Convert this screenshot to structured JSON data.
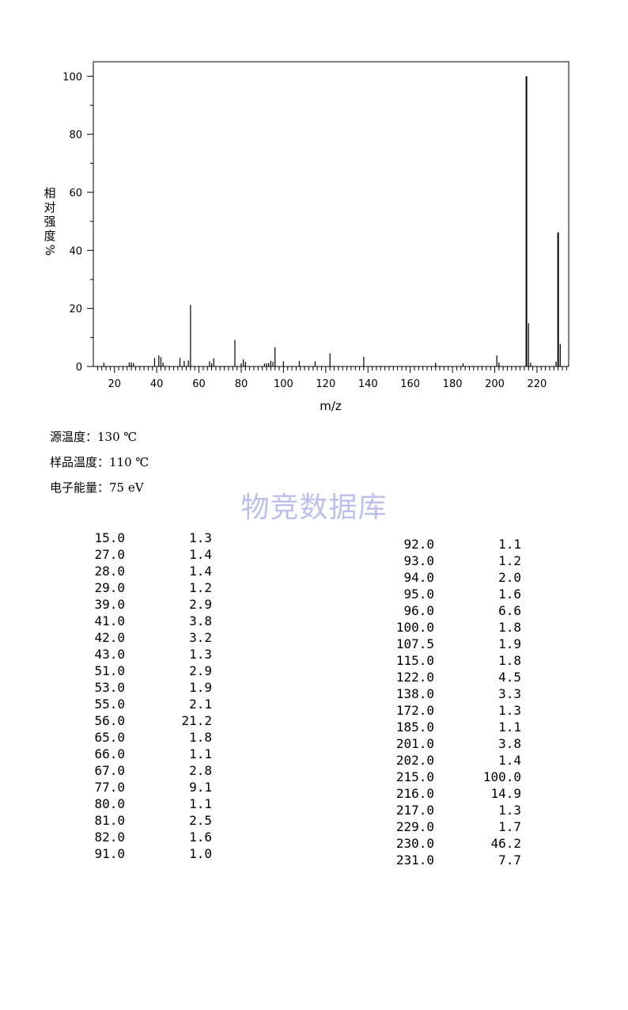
{
  "chart_data": {
    "type": "bar",
    "xlabel": "m/z",
    "ylabel": "相对强度%",
    "xlim": [
      10,
      235
    ],
    "ylim": [
      0,
      105
    ],
    "x_ticks": [
      20,
      40,
      60,
      80,
      100,
      120,
      140,
      160,
      180,
      200,
      220
    ],
    "y_ticks": [
      0,
      20,
      40,
      60,
      80,
      100
    ],
    "grid": false,
    "legend": "none",
    "bar_color": "#000000",
    "peaks": [
      {
        "mz": 15.0,
        "intensity": 1.3
      },
      {
        "mz": 27.0,
        "intensity": 1.4
      },
      {
        "mz": 28.0,
        "intensity": 1.4
      },
      {
        "mz": 29.0,
        "intensity": 1.2
      },
      {
        "mz": 39.0,
        "intensity": 2.9
      },
      {
        "mz": 41.0,
        "intensity": 3.8
      },
      {
        "mz": 42.0,
        "intensity": 3.2
      },
      {
        "mz": 43.0,
        "intensity": 1.3
      },
      {
        "mz": 51.0,
        "intensity": 2.9
      },
      {
        "mz": 53.0,
        "intensity": 1.9
      },
      {
        "mz": 55.0,
        "intensity": 2.1
      },
      {
        "mz": 56.0,
        "intensity": 21.2
      },
      {
        "mz": 65.0,
        "intensity": 1.8
      },
      {
        "mz": 66.0,
        "intensity": 1.1
      },
      {
        "mz": 67.0,
        "intensity": 2.8
      },
      {
        "mz": 77.0,
        "intensity": 9.1
      },
      {
        "mz": 80.0,
        "intensity": 1.1
      },
      {
        "mz": 81.0,
        "intensity": 2.5
      },
      {
        "mz": 82.0,
        "intensity": 1.6
      },
      {
        "mz": 91.0,
        "intensity": 1.0
      },
      {
        "mz": 92.0,
        "intensity": 1.1
      },
      {
        "mz": 93.0,
        "intensity": 1.2
      },
      {
        "mz": 94.0,
        "intensity": 2.0
      },
      {
        "mz": 95.0,
        "intensity": 1.6
      },
      {
        "mz": 96.0,
        "intensity": 6.6
      },
      {
        "mz": 100.0,
        "intensity": 1.8
      },
      {
        "mz": 107.5,
        "intensity": 1.9
      },
      {
        "mz": 115.0,
        "intensity": 1.8
      },
      {
        "mz": 122.0,
        "intensity": 4.5
      },
      {
        "mz": 138.0,
        "intensity": 3.3
      },
      {
        "mz": 172.0,
        "intensity": 1.3
      },
      {
        "mz": 185.0,
        "intensity": 1.1
      },
      {
        "mz": 201.0,
        "intensity": 3.8
      },
      {
        "mz": 202.0,
        "intensity": 1.4
      },
      {
        "mz": 215.0,
        "intensity": 100.0
      },
      {
        "mz": 216.0,
        "intensity": 14.9
      },
      {
        "mz": 217.0,
        "intensity": 1.3
      },
      {
        "mz": 229.0,
        "intensity": 1.7
      },
      {
        "mz": 230.0,
        "intensity": 46.2
      },
      {
        "mz": 231.0,
        "intensity": 7.7
      }
    ]
  },
  "conditions": {
    "source_temp": "源温度：130 ℃",
    "sample_temp": "样品温度：110 ℃",
    "electron_energy": "电子能量：75 eV"
  },
  "watermark": "物竞数据库",
  "peak_table": {
    "left": [
      [
        "15.0",
        "1.3"
      ],
      [
        "27.0",
        "1.4"
      ],
      [
        "28.0",
        "1.4"
      ],
      [
        "29.0",
        "1.2"
      ],
      [
        "39.0",
        "2.9"
      ],
      [
        "41.0",
        "3.8"
      ],
      [
        "42.0",
        "3.2"
      ],
      [
        "43.0",
        "1.3"
      ],
      [
        "51.0",
        "2.9"
      ],
      [
        "53.0",
        "1.9"
      ],
      [
        "55.0",
        "2.1"
      ],
      [
        "56.0",
        "21.2"
      ],
      [
        "65.0",
        "1.8"
      ],
      [
        "66.0",
        "1.1"
      ],
      [
        "67.0",
        "2.8"
      ],
      [
        "77.0",
        "9.1"
      ],
      [
        "80.0",
        "1.1"
      ],
      [
        "81.0",
        "2.5"
      ],
      [
        "82.0",
        "1.6"
      ],
      [
        "91.0",
        "1.0"
      ]
    ],
    "right": [
      [
        "92.0",
        "1.1"
      ],
      [
        "93.0",
        "1.2"
      ],
      [
        "94.0",
        "2.0"
      ],
      [
        "95.0",
        "1.6"
      ],
      [
        "96.0",
        "6.6"
      ],
      [
        "100.0",
        "1.8"
      ],
      [
        "107.5",
        "1.9"
      ],
      [
        "115.0",
        "1.8"
      ],
      [
        "122.0",
        "4.5"
      ],
      [
        "138.0",
        "3.3"
      ],
      [
        "172.0",
        "1.3"
      ],
      [
        "185.0",
        "1.1"
      ],
      [
        "201.0",
        "3.8"
      ],
      [
        "202.0",
        "1.4"
      ],
      [
        "215.0",
        "100.0"
      ],
      [
        "216.0",
        "14.9"
      ],
      [
        "217.0",
        "1.3"
      ],
      [
        "229.0",
        "1.7"
      ],
      [
        "230.0",
        "46.2"
      ],
      [
        "231.0",
        "7.7"
      ]
    ]
  }
}
